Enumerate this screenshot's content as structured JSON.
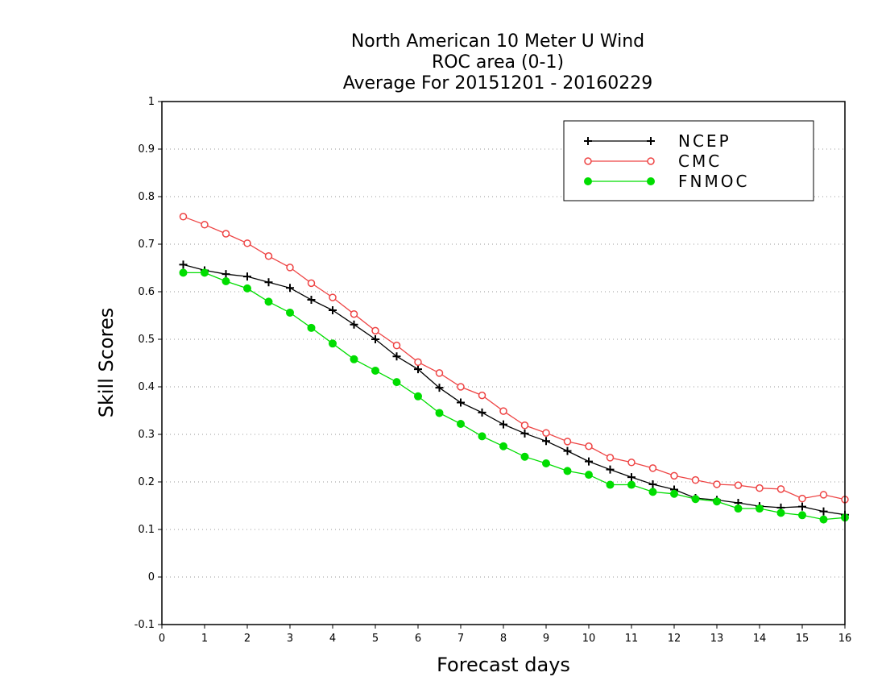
{
  "chart_data": {
    "type": "line",
    "title_lines": [
      "North American 10 Meter U Wind",
      "ROC area (0-1)",
      "Average For 20151201 - 20160229"
    ],
    "xlabel": "Forecast days",
    "ylabel": "Skill Scores",
    "xlim": [
      0,
      16
    ],
    "ylim": [
      -0.1,
      1
    ],
    "xticks": [
      0,
      1,
      2,
      3,
      4,
      5,
      6,
      7,
      8,
      9,
      10,
      11,
      12,
      13,
      14,
      15,
      16
    ],
    "yticks": [
      -0.1,
      0,
      0.1,
      0.2,
      0.3,
      0.4,
      0.5,
      0.6,
      0.7,
      0.8,
      0.9,
      1
    ],
    "ytick_labels": [
      "-0.1",
      "0",
      "0.1",
      "0.2",
      "0.3",
      "0.4",
      "0.5",
      "0.6",
      "0.7",
      "0.8",
      "0.9",
      "1"
    ],
    "grid": "horizontal dotted",
    "legend_position": "top-right",
    "x": [
      0.5,
      1,
      1.5,
      2,
      2.5,
      3,
      3.5,
      4,
      4.5,
      5,
      5.5,
      6,
      6.5,
      7,
      7.5,
      8,
      8.5,
      9,
      9.5,
      10,
      10.5,
      11,
      11.5,
      12,
      12.5,
      13,
      13.5,
      14,
      14.5,
      15,
      15.5,
      16
    ],
    "series": [
      {
        "name": "NCEP",
        "color": "#000000",
        "marker": "plus",
        "values": [
          0.657,
          0.645,
          0.637,
          0.632,
          0.62,
          0.608,
          0.583,
          0.561,
          0.531,
          0.5,
          0.464,
          0.437,
          0.398,
          0.367,
          0.346,
          0.321,
          0.302,
          0.286,
          0.265,
          0.243,
          0.226,
          0.21,
          0.195,
          0.184,
          0.166,
          0.162,
          0.156,
          0.149,
          0.146,
          0.148,
          0.138,
          0.131
        ]
      },
      {
        "name": "CMC",
        "color": "#ee4444",
        "marker": "open-circle",
        "values": [
          0.758,
          0.741,
          0.722,
          0.702,
          0.675,
          0.651,
          0.618,
          0.588,
          0.553,
          0.518,
          0.487,
          0.452,
          0.429,
          0.4,
          0.382,
          0.349,
          0.319,
          0.303,
          0.285,
          0.275,
          0.251,
          0.241,
          0.229,
          0.213,
          0.204,
          0.195,
          0.193,
          0.187,
          0.185,
          0.165,
          0.173,
          0.163
        ]
      },
      {
        "name": "FNMOC",
        "color": "#00dd00",
        "marker": "filled-circle",
        "values": [
          0.64,
          0.64,
          0.622,
          0.607,
          0.579,
          0.556,
          0.524,
          0.491,
          0.458,
          0.434,
          0.41,
          0.38,
          0.345,
          0.322,
          0.296,
          0.275,
          0.253,
          0.239,
          0.223,
          0.215,
          0.194,
          0.194,
          0.179,
          0.175,
          0.164,
          0.159,
          0.144,
          0.144,
          0.135,
          0.13,
          0.121,
          0.125
        ]
      }
    ]
  }
}
